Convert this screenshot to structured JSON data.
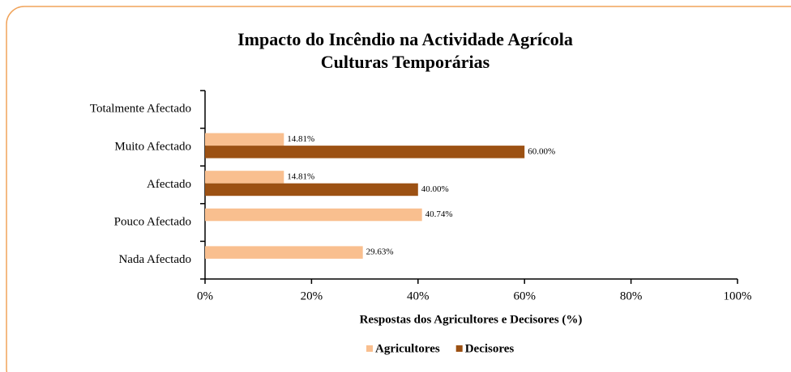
{
  "chart_data": {
    "type": "bar",
    "orientation": "horizontal",
    "title": "Impacto do Incêndio na Actividade Agrícola",
    "subtitle": "Culturas Temporárias",
    "x_label": "Respostas dos Agricultores e Decisores (%)",
    "categories": [
      "Totalmente Afectado",
      "Muito Afectado",
      "Afectado",
      "Pouco Afectado",
      "Nada Afectado"
    ],
    "series": [
      {
        "name": "Agricultores",
        "color": "#f9bf8f",
        "values": [
          null,
          14.81,
          14.81,
          40.74,
          29.63
        ],
        "value_labels": [
          null,
          "14.81%",
          "14.81%",
          "40.74%",
          "29.63%"
        ]
      },
      {
        "name": "Decisores",
        "color": "#9c5113",
        "values": [
          null,
          60,
          40,
          null,
          null
        ],
        "value_labels": [
          null,
          "60.00%",
          "40.00%",
          null,
          null
        ]
      }
    ],
    "xlim": [
      0,
      100
    ],
    "xticks": [
      {
        "value": 0,
        "label": "0%"
      },
      {
        "value": 20,
        "label": "20%"
      },
      {
        "value": 40,
        "label": "40%"
      },
      {
        "value": 60,
        "label": "60%"
      },
      {
        "value": 80,
        "label": "80%"
      },
      {
        "value": 100,
        "label": "100%"
      }
    ],
    "legend": "bottom"
  }
}
